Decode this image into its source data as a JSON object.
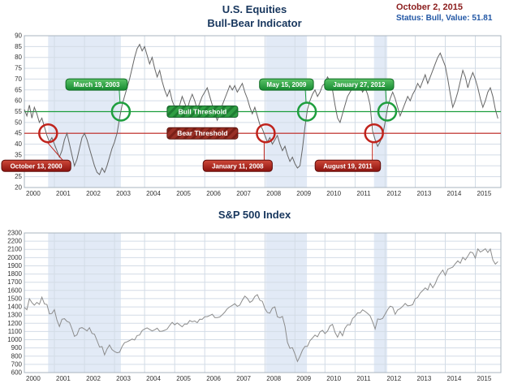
{
  "header": {
    "title_line1": "U.S. Equities",
    "title_line2": "Bull-Bear Indicator",
    "date": "October 2, 2015",
    "status": "Status: Bull, Value: 51.81"
  },
  "colors": {
    "title": "#17365d",
    "date": "#8b1d1d",
    "status": "#2257a5",
    "bull": "#1e9e3e",
    "bear": "#c0231c",
    "indicator_line": "#666666",
    "sp500_line": "#8c8c8c",
    "band": "#e2eaf6",
    "grid": "#d3dce6",
    "border": "#a9b4bf",
    "tick_text": "#333333"
  },
  "chart_data": [
    {
      "type": "line",
      "title": "U.S. Equities Bull-Bear Indicator",
      "xlabel": "",
      "ylabel": "",
      "xlim": [
        2000,
        2015.85
      ],
      "ylim": [
        20,
        90
      ],
      "xticks": [
        2000,
        2001,
        2002,
        2003,
        2004,
        2005,
        2006,
        2007,
        2008,
        2009,
        2010,
        2011,
        2012,
        2013,
        2014,
        2015
      ],
      "yticks": [
        20,
        25,
        30,
        35,
        40,
        45,
        50,
        55,
        60,
        65,
        70,
        75,
        80,
        85,
        90
      ],
      "grid": true,
      "legend": "none",
      "line_color": "#666666",
      "bull_threshold": 55,
      "bear_threshold": 45,
      "bull_label": "Bull Threshold",
      "bear_label": "Bear Threshold",
      "bear_periods": [
        [
          2000.79,
          2003.21
        ],
        [
          2008.03,
          2009.4
        ],
        [
          2011.63,
          2012.07
        ]
      ],
      "bull_signals": [
        {
          "label": "March 19, 2003",
          "x": 2003.21
        },
        {
          "label": "May 15, 2009",
          "x": 2009.4
        },
        {
          "label": "January 27, 2012",
          "x": 2012.07
        }
      ],
      "bear_signals": [
        {
          "label": "October 13, 2000",
          "x": 2000.79
        },
        {
          "label": "January 11, 2008",
          "x": 2008.03
        },
        {
          "label": "August 19, 2011",
          "x": 2011.63
        }
      ],
      "series": [
        {
          "name": "Bull-Bear Indicator",
          "x_start": 2000.0,
          "x_step": 0.083333,
          "values": [
            56,
            53,
            58,
            52,
            57,
            54,
            50,
            52,
            48,
            44,
            41,
            43,
            40,
            37,
            34,
            37,
            42,
            45,
            40,
            35,
            30,
            33,
            38,
            43,
            45,
            42,
            38,
            34,
            30,
            27,
            26,
            29,
            27,
            30,
            34,
            38,
            41,
            45,
            52,
            58,
            62,
            66,
            70,
            75,
            80,
            84,
            86,
            83,
            85,
            81,
            77,
            80,
            75,
            71,
            74,
            69,
            65,
            62,
            65,
            60,
            57,
            55,
            58,
            62,
            59,
            56,
            60,
            63,
            60,
            56,
            59,
            62,
            64,
            66,
            62,
            58,
            54,
            51,
            54,
            58,
            61,
            64,
            67,
            65,
            67,
            64,
            66,
            68,
            64,
            61,
            57,
            54,
            57,
            53,
            49,
            47,
            44,
            41,
            43,
            40,
            42,
            44,
            40,
            37,
            39,
            35,
            32,
            34,
            31,
            29,
            30,
            38,
            48,
            56,
            60,
            63,
            65,
            62,
            64,
            67,
            68,
            71,
            69,
            65,
            58,
            52,
            50,
            54,
            58,
            62,
            64,
            66,
            68,
            70,
            67,
            64,
            66,
            63,
            58,
            46,
            42,
            39,
            41,
            44,
            50,
            57,
            61,
            64,
            61,
            57,
            53,
            56,
            59,
            62,
            60,
            63,
            65,
            68,
            66,
            69,
            72,
            68,
            71,
            74,
            77,
            80,
            82,
            79,
            76,
            70,
            63,
            57,
            60,
            64,
            69,
            74,
            71,
            66,
            70,
            73,
            70,
            66,
            61,
            57,
            60,
            64,
            66,
            62,
            56,
            51.81
          ]
        }
      ]
    },
    {
      "type": "line",
      "title": "S&P 500 Index",
      "xlabel": "",
      "ylabel": "",
      "xlim": [
        2000,
        2015.85
      ],
      "ylim": [
        600,
        2300
      ],
      "xticks": [
        2000,
        2001,
        2002,
        2003,
        2004,
        2005,
        2006,
        2007,
        2008,
        2009,
        2010,
        2011,
        2012,
        2013,
        2014,
        2015
      ],
      "yticks": [
        600,
        700,
        800,
        900,
        1000,
        1100,
        1200,
        1300,
        1400,
        1500,
        1600,
        1700,
        1800,
        1900,
        2000,
        2100,
        2200,
        2300
      ],
      "grid": true,
      "legend": "none",
      "line_color": "#8c8c8c",
      "bear_periods": [
        [
          2000.79,
          2003.21
        ],
        [
          2008.03,
          2009.4
        ],
        [
          2011.63,
          2012.07
        ]
      ],
      "series": [
        {
          "name": "S&P 500",
          "x_start": 2000.0,
          "x_step": 0.083333,
          "values": [
            1394,
            1366,
            1499,
            1452,
            1421,
            1455,
            1431,
            1518,
            1437,
            1429,
            1315,
            1320,
            1366,
            1240,
            1160,
            1249,
            1256,
            1224,
            1211,
            1134,
            1041,
            1060,
            1139,
            1148,
            1130,
            1107,
            1147,
            1077,
            1067,
            990,
            911,
            916,
            815,
            886,
            936,
            880,
            856,
            841,
            848,
            917,
            964,
            975,
            990,
            1008,
            996,
            1051,
            1058,
            1112,
            1131,
            1145,
            1126,
            1107,
            1121,
            1141,
            1102,
            1104,
            1115,
            1130,
            1174,
            1212,
            1181,
            1204,
            1181,
            1157,
            1192,
            1191,
            1234,
            1220,
            1229,
            1207,
            1249,
            1248,
            1280,
            1281,
            1295,
            1311,
            1270,
            1270,
            1277,
            1304,
            1336,
            1378,
            1401,
            1418,
            1438,
            1407,
            1421,
            1482,
            1531,
            1503,
            1455,
            1474,
            1527,
            1549,
            1481,
            1468,
            1379,
            1331,
            1323,
            1386,
            1400,
            1280,
            1267,
            1283,
            1166,
            969,
            896,
            903,
            826,
            735,
            798,
            873,
            919,
            919,
            987,
            1021,
            1057,
            1036,
            1096,
            1115,
            1074,
            1104,
            1169,
            1187,
            1089,
            1031,
            1102,
            1049,
            1141,
            1183,
            1181,
            1258,
            1286,
            1327,
            1326,
            1364,
            1345,
            1321,
            1292,
            1219,
            1131,
            1253,
            1247,
            1258,
            1312,
            1366,
            1408,
            1398,
            1310,
            1362,
            1379,
            1407,
            1441,
            1412,
            1416,
            1426,
            1498,
            1515,
            1569,
            1598,
            1631,
            1606,
            1686,
            1633,
            1682,
            1757,
            1806,
            1848,
            1783,
            1859,
            1872,
            1884,
            1924,
            1960,
            1931,
            2003,
            1972,
            2018,
            2068,
            2059,
            1995,
            2105,
            2068,
            2086,
            2107,
            2063,
            2104,
            1972,
            1920,
            1951
          ]
        }
      ]
    }
  ]
}
